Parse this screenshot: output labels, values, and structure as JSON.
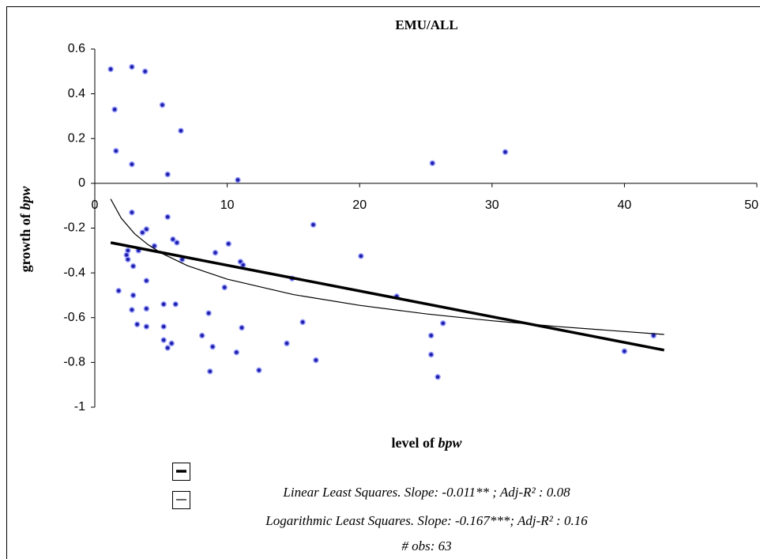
{
  "chart_data": {
    "type": "scatter",
    "title": "EMU/ALL",
    "xlabel": [
      "level of",
      "bpw"
    ],
    "ylabel": [
      "growth of",
      "bpw"
    ],
    "xlim": [
      0,
      50
    ],
    "xticks": [
      0,
      10,
      20,
      30,
      40,
      50
    ],
    "ylim": [
      -1,
      0.6
    ],
    "yticks": [
      0.6,
      0.4,
      0.2,
      0,
      -0.2,
      -0.4,
      -0.6,
      -0.8,
      -1
    ],
    "series": [
      {
        "type": "scatter",
        "color": "#1f1fa8",
        "x": [
          1.2,
          1.5,
          1.6,
          2.8,
          2.8,
          3.8,
          5.1,
          6.5,
          5.5,
          10.8,
          25.5,
          31.0,
          1.8,
          2.8,
          2.5,
          2.4,
          2.5,
          2.9,
          2.9,
          2.8,
          3.2,
          3.3,
          3.6,
          3.9,
          3.9,
          3.9,
          3.9,
          4.5,
          5.2,
          5.2,
          5.2,
          5.5,
          5.5,
          5.8,
          5.9,
          6.1,
          6.2,
          6.6,
          8.1,
          8.6,
          8.7,
          8.9,
          9.1,
          9.8,
          10.1,
          10.7,
          11.0,
          11.1,
          11.2,
          12.4,
          14.5,
          14.9,
          15.7,
          16.5,
          16.7,
          20.1,
          22.8,
          25.4,
          25.4,
          25.9,
          26.3,
          40.0,
          42.2
        ],
        "values": [
          0.51,
          0.33,
          0.145,
          0.085,
          0.52,
          0.5,
          0.35,
          0.235,
          0.04,
          0.015,
          0.09,
          0.14,
          -0.48,
          -0.13,
          -0.3,
          -0.32,
          -0.34,
          -0.37,
          -0.5,
          -0.565,
          -0.63,
          -0.3,
          -0.22,
          -0.205,
          -0.435,
          -0.56,
          -0.64,
          -0.28,
          -0.64,
          -0.54,
          -0.7,
          -0.15,
          -0.735,
          -0.715,
          -0.25,
          -0.54,
          -0.265,
          -0.34,
          -0.68,
          -0.58,
          -0.84,
          -0.73,
          -0.31,
          -0.465,
          -0.27,
          -0.755,
          -0.35,
          -0.645,
          -0.365,
          -0.835,
          -0.715,
          -0.425,
          -0.62,
          -0.185,
          -0.79,
          -0.325,
          -0.505,
          -0.68,
          -0.765,
          -0.865,
          -0.625,
          -0.75,
          -0.68
        ]
      },
      {
        "type": "line",
        "name": "Linear Least Squares. Slope: -0.011** ; Adj-R² : 0.08",
        "color": "#000000",
        "line_width": 3.5,
        "x": [
          1.2,
          43
        ],
        "values": [
          -0.265,
          -0.745
        ]
      },
      {
        "type": "line",
        "name": "Logarithmic Least Squares. Slope: -0.167***; Adj-R² : 0.16",
        "color": "#000000",
        "line_width": 1.2,
        "x": [
          1.2,
          2,
          3,
          4,
          5,
          7,
          10,
          15,
          20,
          25,
          30,
          35,
          40,
          43
        ],
        "values": [
          -0.07,
          -0.156,
          -0.225,
          -0.273,
          -0.311,
          -0.368,
          -0.428,
          -0.497,
          -0.545,
          -0.583,
          -0.614,
          -0.64,
          -0.662,
          -0.675
        ]
      }
    ],
    "note": "# obs: 63"
  }
}
